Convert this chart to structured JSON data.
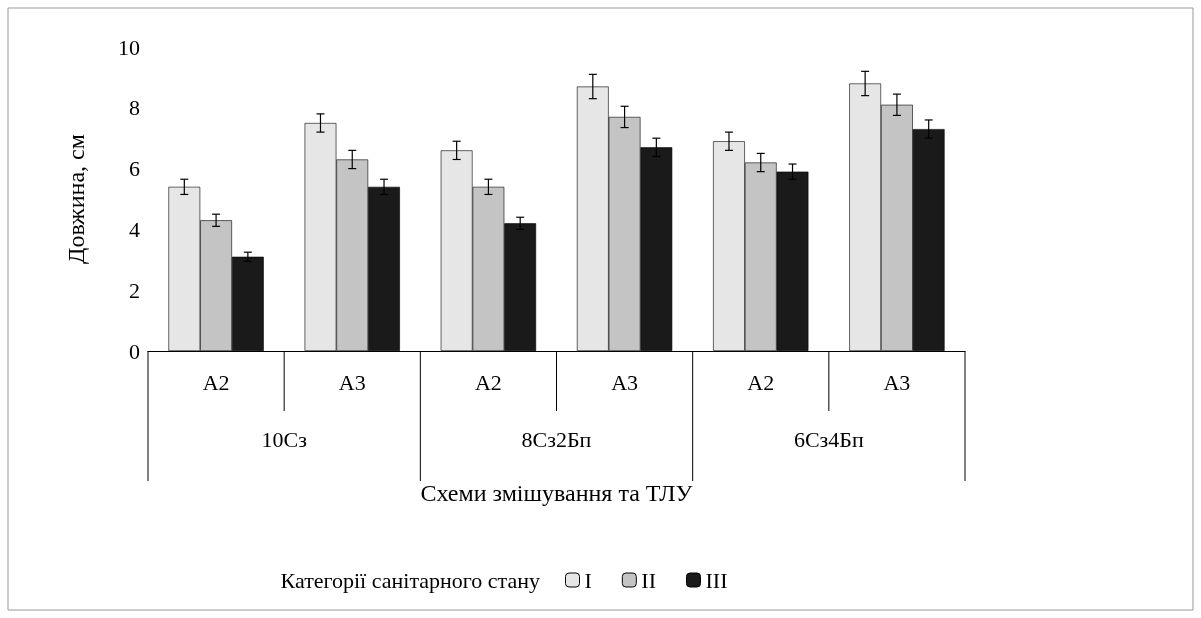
{
  "chart_data": {
    "type": "bar",
    "xlabel": "Схеми змішування та ТЛУ",
    "ylabel": "Довжина, см",
    "legend_title": "Категорії санітарного стану",
    "categories": [
      "А2",
      "А3",
      "А2",
      "А3",
      "А2",
      "А3"
    ],
    "annotations": [
      "10Сз",
      "8Сз2Бп",
      "6Сз4Бп"
    ],
    "series": [
      {
        "name": "I",
        "color": "#e6e6e6",
        "values": [
          5.4,
          7.5,
          6.6,
          8.7,
          6.9,
          8.8
        ],
        "errors": [
          0.25,
          0.3,
          0.3,
          0.4,
          0.3,
          0.4
        ]
      },
      {
        "name": "II",
        "color": "#c4c4c4",
        "values": [
          4.3,
          6.3,
          5.4,
          7.7,
          6.2,
          8.1
        ],
        "errors": [
          0.2,
          0.3,
          0.25,
          0.35,
          0.3,
          0.35
        ]
      },
      {
        "name": "III",
        "color": "#1a1a1a",
        "values": [
          3.1,
          5.4,
          4.2,
          6.7,
          5.9,
          7.3
        ],
        "errors": [
          0.15,
          0.25,
          0.2,
          0.3,
          0.25,
          0.3
        ]
      }
    ],
    "ylim": [
      0,
      10
    ],
    "yticks": [
      0,
      2,
      4,
      6,
      8,
      10
    ],
    "grid": false,
    "legend": "bottom"
  }
}
